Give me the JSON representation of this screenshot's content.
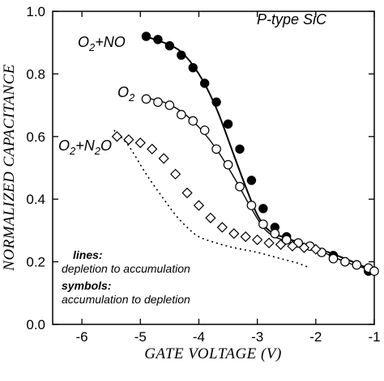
{
  "chart_data": {
    "type": "scatter",
    "title": "P-type SiC",
    "xlabel": "GATE VOLTAGE (V)",
    "ylabel": "NORMALIZED CAPACITANCE",
    "xlim": [
      -6.5,
      -1
    ],
    "ylim": [
      0,
      1.0
    ],
    "x_ticks": [
      -6,
      -5,
      -4,
      -3,
      -2,
      -1
    ],
    "x_tick_labels": [
      "-6",
      "-5",
      "-4",
      "-3",
      "-2",
      "-1"
    ],
    "y_ticks": [
      0,
      0.2,
      0.4,
      0.6,
      0.8,
      1.0
    ],
    "y_tick_labels": [
      "0.0",
      "0.2",
      "0.4",
      "0.6",
      "0.8",
      "1.0"
    ],
    "legend_note": {
      "lines_label": "lines:",
      "lines_text": "depletion to accumulation",
      "symbols_label": "symbols:",
      "symbols_text": "accumulation to depletion"
    },
    "series": [
      {
        "name": "O2+NO",
        "label_main": "O",
        "label_sub": "2",
        "label_rest": "+NO",
        "marker": "filled-circle",
        "points": [
          [
            -4.9,
            0.92
          ],
          [
            -4.7,
            0.91
          ],
          [
            -4.5,
            0.89
          ],
          [
            -4.3,
            0.86
          ],
          [
            -4.1,
            0.82
          ],
          [
            -3.9,
            0.77
          ],
          [
            -3.7,
            0.71
          ],
          [
            -3.5,
            0.64
          ],
          [
            -3.3,
            0.56
          ],
          [
            -3.1,
            0.46
          ],
          [
            -2.9,
            0.37
          ],
          [
            -2.7,
            0.31
          ],
          [
            -2.5,
            0.28
          ],
          [
            -2.3,
            0.26
          ],
          [
            -2.1,
            0.25
          ],
          [
            -1.9,
            0.23
          ],
          [
            -1.7,
            0.22
          ],
          [
            -1.5,
            0.2
          ],
          [
            -1.3,
            0.19
          ],
          [
            -1.1,
            0.17
          ]
        ],
        "line": [
          [
            -4.95,
            0.922
          ],
          [
            -4.6,
            0.9
          ],
          [
            -4.3,
            0.87
          ],
          [
            -4.0,
            0.8
          ],
          [
            -3.7,
            0.69
          ],
          [
            -3.4,
            0.54
          ],
          [
            -3.2,
            0.44
          ],
          [
            -3.0,
            0.35
          ],
          [
            -2.8,
            0.3
          ],
          [
            -2.5,
            0.275
          ],
          [
            -2.0,
            0.245
          ],
          [
            -1.5,
            0.21
          ],
          [
            -1.0,
            0.17
          ]
        ]
      },
      {
        "name": "O2",
        "label_main": "O",
        "label_sub": "2",
        "label_rest": "",
        "marker": "open-circle",
        "points": [
          [
            -4.9,
            0.72
          ],
          [
            -4.7,
            0.71
          ],
          [
            -4.5,
            0.7
          ],
          [
            -4.3,
            0.67
          ],
          [
            -4.1,
            0.65
          ],
          [
            -3.9,
            0.62
          ],
          [
            -3.7,
            0.56
          ],
          [
            -3.5,
            0.51
          ],
          [
            -3.3,
            0.44
          ],
          [
            -3.1,
            0.38
          ],
          [
            -2.9,
            0.32
          ],
          [
            -2.7,
            0.29
          ],
          [
            -2.5,
            0.27
          ],
          [
            -2.3,
            0.26
          ],
          [
            -2.1,
            0.25
          ],
          [
            -1.9,
            0.23
          ],
          [
            -1.7,
            0.21
          ],
          [
            -1.5,
            0.2
          ],
          [
            -1.3,
            0.19
          ],
          [
            -1.1,
            0.18
          ],
          [
            -1.0,
            0.17
          ]
        ],
        "line": [
          [
            -4.95,
            0.725
          ],
          [
            -4.6,
            0.71
          ],
          [
            -4.3,
            0.68
          ],
          [
            -4.0,
            0.63
          ],
          [
            -3.7,
            0.56
          ],
          [
            -3.4,
            0.47
          ],
          [
            -3.1,
            0.37
          ],
          [
            -2.9,
            0.31
          ],
          [
            -2.7,
            0.28
          ],
          [
            -2.4,
            0.26
          ],
          [
            -2.0,
            0.24
          ],
          [
            -1.5,
            0.2
          ],
          [
            -1.0,
            0.17
          ]
        ]
      },
      {
        "name": "O2+N2O",
        "label_main": "O",
        "label_sub": "2",
        "label_rest": "+N",
        "label_sub2": "2",
        "label_rest2": "O",
        "marker": "open-diamond",
        "points": [
          [
            -5.4,
            0.6
          ],
          [
            -5.2,
            0.59
          ],
          [
            -5.0,
            0.58
          ],
          [
            -4.8,
            0.56
          ],
          [
            -4.6,
            0.53
          ],
          [
            -4.4,
            0.48
          ],
          [
            -4.2,
            0.42
          ],
          [
            -4.0,
            0.38
          ],
          [
            -3.8,
            0.34
          ],
          [
            -3.6,
            0.31
          ],
          [
            -3.4,
            0.29
          ],
          [
            -3.2,
            0.28
          ],
          [
            -3.0,
            0.27
          ],
          [
            -2.8,
            0.26
          ],
          [
            -2.6,
            0.255
          ],
          [
            -2.4,
            0.25
          ],
          [
            -2.2,
            0.245
          ],
          [
            -2.0,
            0.24
          ]
        ],
        "line": [
          [
            -5.45,
            0.62
          ],
          [
            -5.2,
            0.57
          ],
          [
            -4.9,
            0.48
          ],
          [
            -4.6,
            0.4
          ],
          [
            -4.4,
            0.35
          ],
          [
            -4.2,
            0.31
          ],
          [
            -4.0,
            0.28
          ],
          [
            -3.7,
            0.26
          ],
          [
            -3.4,
            0.245
          ],
          [
            -3.0,
            0.23
          ],
          [
            -2.6,
            0.21
          ],
          [
            -2.3,
            0.195
          ],
          [
            -2.1,
            0.18
          ]
        ],
        "line_style": "dotted"
      }
    ]
  }
}
